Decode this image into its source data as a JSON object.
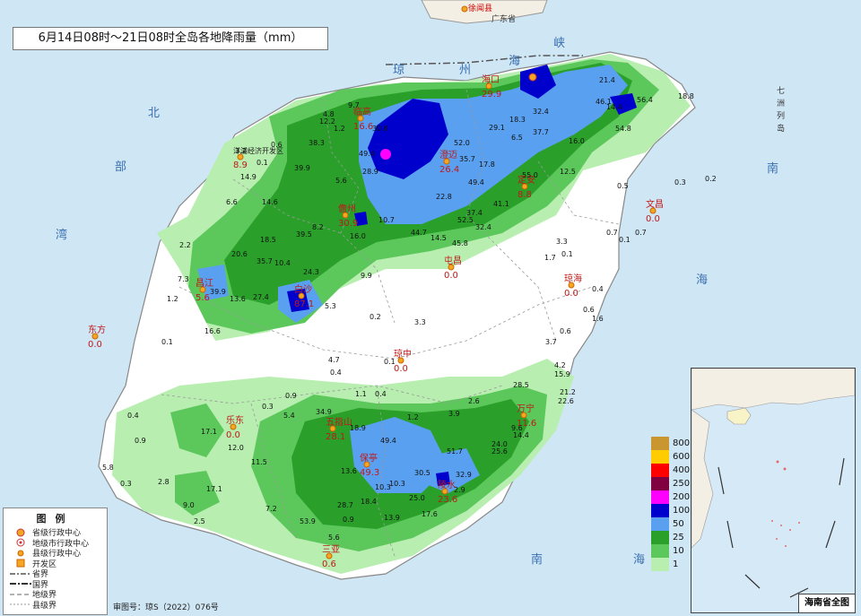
{
  "title": "6月14日08时～21日08时全岛各地降雨量（mm）",
  "credit": "审图号：琼S（2022）076号",
  "inset_caption": "海南省全图",
  "legend": {
    "title": "图例",
    "items": [
      {
        "label": "省级行政中心",
        "icon": "provincial-capital-icon"
      },
      {
        "label": "地级市行政中心",
        "icon": "prefecture-city-icon"
      },
      {
        "label": "县级行政中心",
        "icon": "county-seat-icon"
      },
      {
        "label": "开发区",
        "icon": "development-zone-icon"
      },
      {
        "label": "省界",
        "icon": "province-boundary-line"
      },
      {
        "label": "国界",
        "icon": "national-boundary-line"
      },
      {
        "label": "地级界",
        "icon": "prefecture-boundary-line"
      },
      {
        "label": "县级界",
        "icon": "county-boundary-line"
      }
    ]
  },
  "color_scale": [
    {
      "value": "800",
      "color": "#c9962f"
    },
    {
      "value": "600",
      "color": "#ffcc00"
    },
    {
      "value": "400",
      "color": "#ff0000"
    },
    {
      "value": "250",
      "color": "#800040"
    },
    {
      "value": "200",
      "color": "#ff00ff"
    },
    {
      "value": "100",
      "color": "#0000cc"
    },
    {
      "value": "50",
      "color": "#5aa0f0"
    },
    {
      "value": "25",
      "color": "#2aa02a"
    },
    {
      "value": "10",
      "color": "#5cc85c"
    },
    {
      "value": "1",
      "color": "#b8eeb0"
    }
  ],
  "sea_labels": [
    "琼",
    "州",
    "海",
    "峡",
    "北",
    "部",
    "湾",
    "南",
    "海",
    "南",
    "海",
    "七",
    "洲",
    "列",
    "岛"
  ],
  "neighbor_labels": {
    "guangdong": "广东省",
    "xuwen": "徐闻县"
  },
  "cities": [
    {
      "name": "海口",
      "value": "29.9"
    },
    {
      "name": "澄迈",
      "value": "26.4"
    },
    {
      "name": "定安",
      "value": "8.8"
    },
    {
      "name": "儋州",
      "value": "30.9"
    },
    {
      "name": "屯昌",
      "value": "0.0"
    },
    {
      "name": "琼海",
      "value": "0.0"
    },
    {
      "name": "文昌",
      "value": "0.0"
    },
    {
      "name": "白沙",
      "value": "87.1"
    },
    {
      "name": "昌江",
      "value": "5.6"
    },
    {
      "name": "东方",
      "value": "0.0"
    },
    {
      "name": "琼中",
      "value": "0.0"
    },
    {
      "name": "乐东",
      "value": "0.0"
    },
    {
      "name": "五指山",
      "value": "28.1"
    },
    {
      "name": "保亭",
      "value": "49.3"
    },
    {
      "name": "万宁",
      "value": "11.6"
    },
    {
      "name": "陵水",
      "value": "23.6"
    },
    {
      "name": "三亚",
      "value": "0.6"
    },
    {
      "name": "临高",
      "value": "16.6"
    },
    {
      "name": "洋浦经济开发区",
      "value": "8.9"
    }
  ],
  "station_values": [
    "9.7",
    "4.8",
    "12.2",
    "1.2",
    "30.8",
    "38.3",
    "0.6",
    "3.2",
    "0.1",
    "14.9",
    "39.9",
    "5.6",
    "28.9",
    "49.4",
    "52.0",
    "35.7",
    "17.8",
    "29.1",
    "6.5",
    "18.3",
    "32.4",
    "37.7",
    "46.1",
    "14.4",
    "54.8",
    "21.4",
    "56.4",
    "18.8",
    "16.0",
    "12.5",
    "55.0",
    "49.4",
    "22.8",
    "41.1",
    "37.4",
    "52.5",
    "32.4",
    "45.8",
    "44.7",
    "14.5",
    "10.7",
    "16.0",
    "8.2",
    "39.5",
    "18.5",
    "20.6",
    "14.6",
    "6.6",
    "2.2",
    "7.3",
    "39.9",
    "13.6",
    "27.4",
    "35.7",
    "10.4",
    "24.3",
    "9.9",
    "5.3",
    "1.2",
    "16.6",
    "0.1",
    "0.2",
    "3.3",
    "4.7",
    "0.1",
    "0.4",
    "0.5",
    "0.3",
    "0.2",
    "0.7",
    "0.1",
    "0.7",
    "0.1",
    "3.3",
    "1.7",
    "0.4",
    "0.6",
    "1.6",
    "0.6",
    "3.7",
    "4.2",
    "15.9",
    "21.2",
    "22.6",
    "28.5",
    "14.4",
    "9.6",
    "25.6",
    "24.0",
    "51.7",
    "30.5",
    "32.9",
    "2.9",
    "1.2",
    "3.9",
    "2.6",
    "1.1",
    "0.4",
    "0.9",
    "5.4",
    "34.9",
    "18.9",
    "49.4",
    "13.6",
    "10.3",
    "10.3",
    "25.0",
    "17.6",
    "13.9",
    "18.4",
    "28.7",
    "53.9",
    "0.9",
    "5.6",
    "7.2",
    "9.0",
    "2.5",
    "17.1",
    "12.0",
    "11.5",
    "2.8",
    "5.8",
    "0.3",
    "0.4",
    "0.9",
    "17.1",
    "0.3"
  ]
}
